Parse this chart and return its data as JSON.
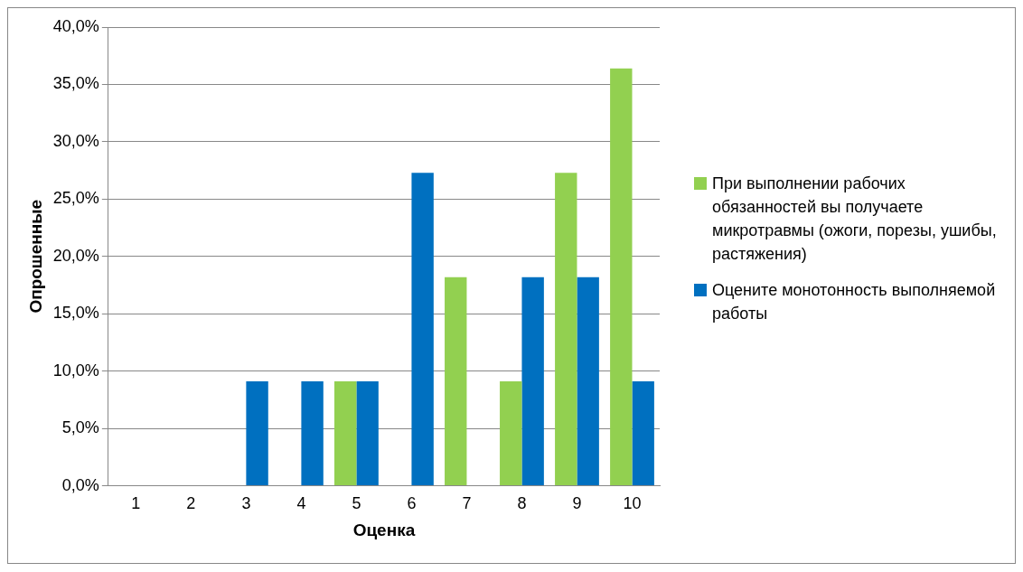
{
  "chart_data": {
    "type": "bar",
    "xlabel": "Оценка",
    "ylabel": "Опрошенные",
    "categories": [
      "1",
      "2",
      "3",
      "4",
      "5",
      "6",
      "7",
      "8",
      "9",
      "10"
    ],
    "series": [
      {
        "name": "При выполнении рабочих обязанностей вы получаете микротравмы (ожоги, порезы, ушибы, растяжения)",
        "color": "#92d050",
        "values": [
          0,
          0,
          0,
          0,
          9.1,
          0,
          18.2,
          9.1,
          27.3,
          36.4
        ]
      },
      {
        "name": "Оцените монотонность выполняемой работы",
        "color": "#0070c0",
        "values": [
          0,
          0,
          9.1,
          9.1,
          9.1,
          27.3,
          0,
          18.2,
          18.2,
          9.1
        ]
      }
    ],
    "ylim": [
      0,
      40
    ],
    "yticks": [
      {
        "value": 0,
        "label": "0,0%"
      },
      {
        "value": 5,
        "label": "5,0%"
      },
      {
        "value": 10,
        "label": "10,0%"
      },
      {
        "value": 15,
        "label": "15,0%"
      },
      {
        "value": 20,
        "label": "20,0%"
      },
      {
        "value": 25,
        "label": "25,0%"
      },
      {
        "value": 30,
        "label": "30,0%"
      },
      {
        "value": 35,
        "label": "35,0%"
      },
      {
        "value": 40,
        "label": "40,0%"
      }
    ],
    "grid": "y",
    "legend": "right"
  }
}
